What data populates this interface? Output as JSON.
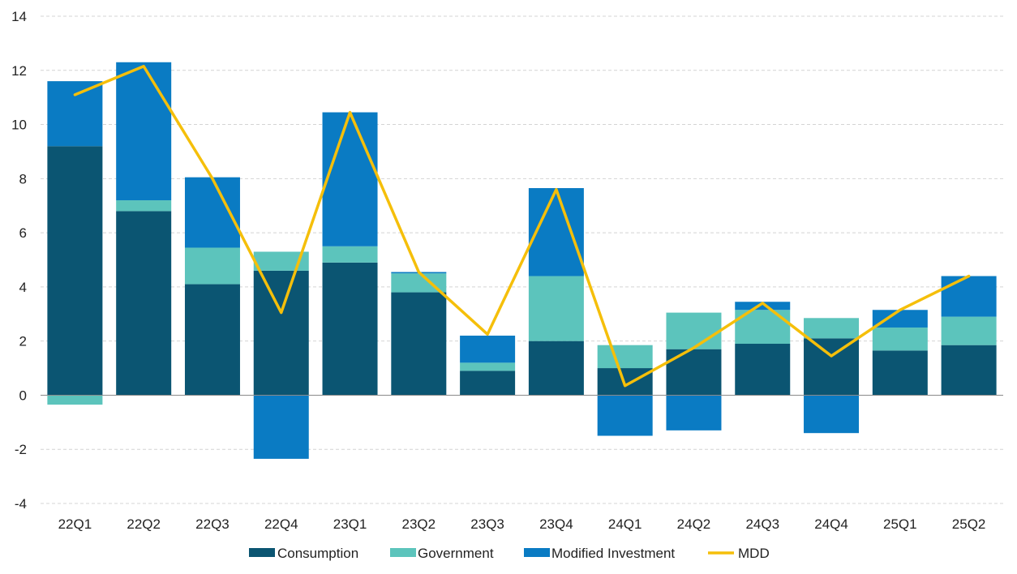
{
  "chart_data": {
    "type": "bar",
    "stacked": true,
    "categories": [
      "22Q1",
      "22Q2",
      "22Q3",
      "22Q4",
      "23Q1",
      "23Q2",
      "23Q3",
      "23Q4",
      "24Q1",
      "24Q2",
      "24Q3",
      "24Q4",
      "25Q1",
      "25Q2"
    ],
    "series": [
      {
        "name": "Consumption",
        "color": "#0b5572",
        "values": [
          9.2,
          6.8,
          4.1,
          4.6,
          4.9,
          3.8,
          0.9,
          2.0,
          1.0,
          1.7,
          1.9,
          2.1,
          1.65,
          1.85
        ]
      },
      {
        "name": "Government",
        "color": "#5cc4bc",
        "values": [
          -0.35,
          0.4,
          1.35,
          0.7,
          0.6,
          0.7,
          0.3,
          2.4,
          0.85,
          1.35,
          1.25,
          0.75,
          0.85,
          1.05
        ]
      },
      {
        "name": "Modified Investment",
        "color": "#0a7bc3",
        "values": [
          2.4,
          5.1,
          2.6,
          -2.35,
          4.95,
          0.05,
          1.0,
          3.25,
          -1.5,
          -1.3,
          0.3,
          -1.4,
          0.65,
          1.5
        ]
      }
    ],
    "line": {
      "name": "MDD",
      "color": "#f5bf0a",
      "values": [
        11.1,
        12.15,
        8.0,
        3.05,
        10.45,
        4.55,
        2.25,
        7.6,
        0.35,
        1.75,
        3.4,
        1.45,
        3.15,
        4.4
      ]
    },
    "yticks": [
      -4,
      -2,
      0,
      2,
      4,
      6,
      8,
      10,
      12,
      14
    ],
    "ylim": [
      -4,
      14
    ],
    "grid": true,
    "legend_position": "bottom",
    "title": "",
    "xlabel": "",
    "ylabel": ""
  }
}
